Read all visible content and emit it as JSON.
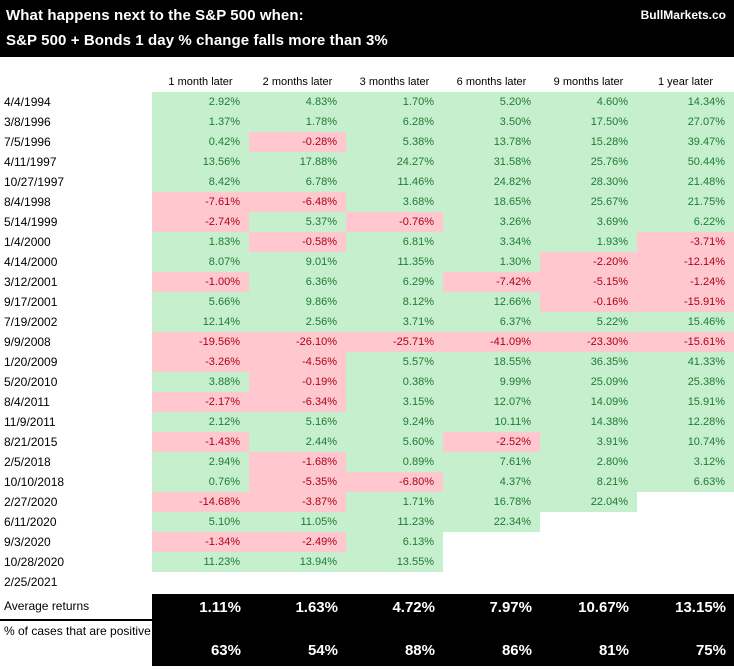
{
  "header": {
    "title_line1": "What happens next to the S&P 500 when:",
    "title_line2": "S&P 500 + Bonds 1 day % change falls more than 3%",
    "brand": "BullMarkets.co"
  },
  "colors": {
    "positive_bg": "#c6efce",
    "positive_text": "#1e7b34",
    "negative_bg": "#ffc7ce",
    "negative_text": "#b00019",
    "header_bg": "#000000",
    "header_text": "#ffffff"
  },
  "chart_data": {
    "type": "table",
    "title": "What happens next to the S&P 500 when: S&P 500 + Bonds 1 day % change falls more than 3%",
    "columns": [
      "1 month later",
      "2 months later",
      "3 months later",
      "6 months later",
      "9 months later",
      "1 year later"
    ],
    "rows": [
      {
        "date": "4/4/1994",
        "values": [
          "2.92%",
          "4.83%",
          "1.70%",
          "5.20%",
          "4.60%",
          "14.34%"
        ]
      },
      {
        "date": "3/8/1996",
        "values": [
          "1.37%",
          "1.78%",
          "6.28%",
          "3.50%",
          "17.50%",
          "27.07%"
        ]
      },
      {
        "date": "7/5/1996",
        "values": [
          "0.42%",
          "-0.28%",
          "5.38%",
          "13.78%",
          "15.28%",
          "39.47%"
        ]
      },
      {
        "date": "4/11/1997",
        "values": [
          "13.56%",
          "17.88%",
          "24.27%",
          "31.58%",
          "25.76%",
          "50.44%"
        ]
      },
      {
        "date": "10/27/1997",
        "values": [
          "8.42%",
          "6.78%",
          "11.46%",
          "24.82%",
          "28.30%",
          "21.48%"
        ]
      },
      {
        "date": "8/4/1998",
        "values": [
          "-7.61%",
          "-6.48%",
          "3.68%",
          "18.65%",
          "25.67%",
          "21.75%"
        ]
      },
      {
        "date": "5/14/1999",
        "values": [
          "-2.74%",
          "5.37%",
          "-0.76%",
          "3.26%",
          "3.69%",
          "6.22%"
        ]
      },
      {
        "date": "1/4/2000",
        "values": [
          "1.83%",
          "-0.58%",
          "6.81%",
          "3.34%",
          "1.93%",
          "-3.71%"
        ]
      },
      {
        "date": "4/14/2000",
        "values": [
          "8.07%",
          "9.01%",
          "11.35%",
          "1.30%",
          "-2.20%",
          "-12.14%"
        ]
      },
      {
        "date": "3/12/2001",
        "values": [
          "-1.00%",
          "6.36%",
          "6.29%",
          "-7.42%",
          "-5.15%",
          "-1.24%"
        ]
      },
      {
        "date": "9/17/2001",
        "values": [
          "5.66%",
          "9.86%",
          "8.12%",
          "12.66%",
          "-0.16%",
          "-15.91%"
        ]
      },
      {
        "date": "7/19/2002",
        "values": [
          "12.14%",
          "2.56%",
          "3.71%",
          "6.37%",
          "5.22%",
          "15.46%"
        ]
      },
      {
        "date": "9/9/2008",
        "values": [
          "-19.56%",
          "-26.10%",
          "-25.71%",
          "-41.09%",
          "-23.30%",
          "-15.61%"
        ]
      },
      {
        "date": "1/20/2009",
        "values": [
          "-3.26%",
          "-4.56%",
          "5.57%",
          "18.55%",
          "36.35%",
          "41.33%"
        ]
      },
      {
        "date": "5/20/2010",
        "values": [
          "3.88%",
          "-0.19%",
          "0.38%",
          "9.99%",
          "25.09%",
          "25.38%"
        ]
      },
      {
        "date": "8/4/2011",
        "values": [
          "-2.17%",
          "-6.34%",
          "3.15%",
          "12.07%",
          "14.09%",
          "15.91%"
        ]
      },
      {
        "date": "11/9/2011",
        "values": [
          "2.12%",
          "5.16%",
          "9.24%",
          "10.11%",
          "14.38%",
          "12.28%"
        ]
      },
      {
        "date": "8/21/2015",
        "values": [
          "-1.43%",
          "2.44%",
          "5.60%",
          "-2.52%",
          "3.91%",
          "10.74%"
        ]
      },
      {
        "date": "2/5/2018",
        "values": [
          "2.94%",
          "-1.68%",
          "0.89%",
          "7.61%",
          "2.80%",
          "3.12%"
        ]
      },
      {
        "date": "10/10/2018",
        "values": [
          "0.76%",
          "-5.35%",
          "-6.80%",
          "4.37%",
          "8.21%",
          "6.63%"
        ]
      },
      {
        "date": "2/27/2020",
        "values": [
          "-14.68%",
          "-3.87%",
          "1.71%",
          "16.78%",
          "22.04%",
          ""
        ]
      },
      {
        "date": "6/11/2020",
        "values": [
          "5.10%",
          "11.05%",
          "11.23%",
          "22.34%",
          "",
          ""
        ]
      },
      {
        "date": "9/3/2020",
        "values": [
          "-1.34%",
          "-2.49%",
          "6.13%",
          "",
          "",
          ""
        ]
      },
      {
        "date": "10/28/2020",
        "values": [
          "11.23%",
          "13.94%",
          "13.55%",
          "",
          "",
          ""
        ]
      },
      {
        "date": "2/25/2021",
        "values": [
          "",
          "",
          "",
          "",
          "",
          ""
        ]
      }
    ],
    "summary": {
      "average_label": "Average returns",
      "averages": [
        "1.11%",
        "1.63%",
        "4.72%",
        "7.97%",
        "10.67%",
        "13.15%"
      ],
      "percent_positive_label": "% of cases that are positive",
      "percent_positive": [
        "63%",
        "54%",
        "88%",
        "86%",
        "81%",
        "75%"
      ]
    }
  }
}
